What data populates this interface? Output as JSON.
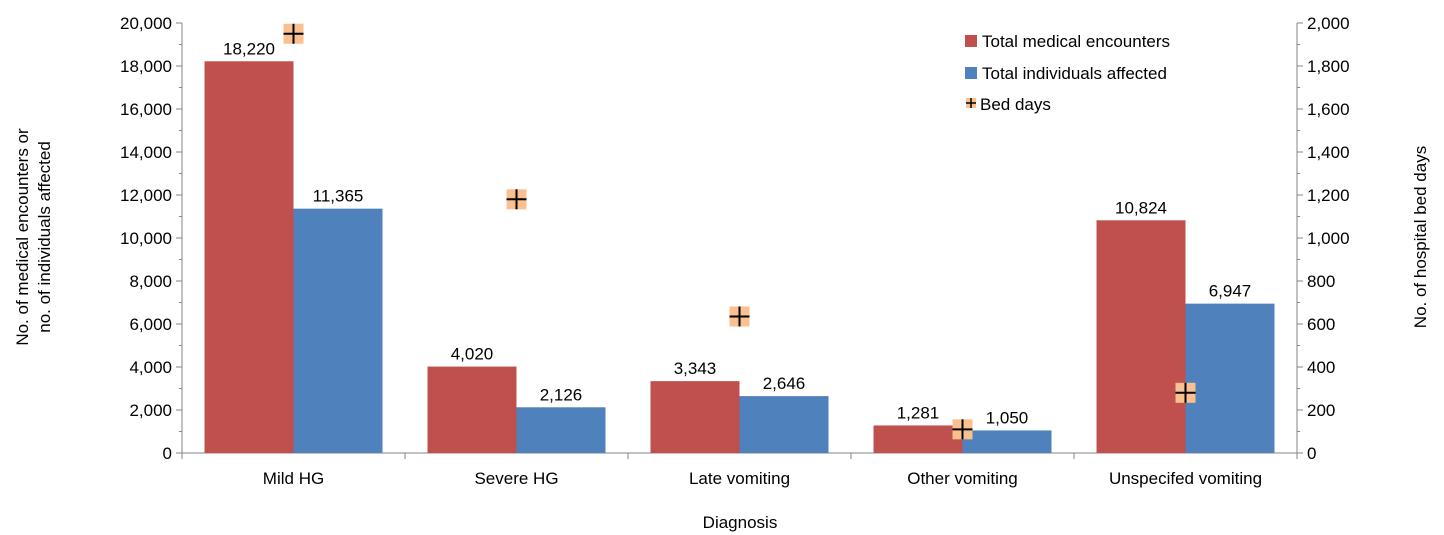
{
  "chart_data": {
    "type": "bar",
    "title": "",
    "xlabel": "Diagnosis",
    "ylabel_lines": [
      "No. of medical encounters or",
      "no. of individuals affected"
    ],
    "y2label": "No. of hospital bed days",
    "ylim": [
      0,
      20000
    ],
    "y_ticks": [
      "0",
      "2,000",
      "4,000",
      "6,000",
      "8,000",
      "10,000",
      "12,000",
      "14,000",
      "16,000",
      "18,000",
      "20,000"
    ],
    "y2lim": [
      0,
      2000
    ],
    "y2_ticks": [
      "0",
      "200",
      "400",
      "600",
      "800",
      "1,000",
      "1,200",
      "1,400",
      "1,600",
      "1,800",
      "2,000"
    ],
    "categories": [
      "Mild HG",
      "Severe HG",
      "Late vomiting",
      "Other vomiting",
      "Unspecifed vomiting"
    ],
    "series": [
      {
        "name": "Total medical encounters",
        "axis": "left",
        "color": "#C0504D",
        "values": [
          18220,
          4020,
          3343,
          1281,
          10824
        ],
        "labels": [
          "18,220",
          "4,020",
          "3,343",
          "1,281",
          "10,824"
        ]
      },
      {
        "name": "Total individuals affected",
        "axis": "left",
        "color": "#4F81BD",
        "values": [
          11365,
          2126,
          2646,
          1050,
          6947
        ],
        "labels": [
          "11,365",
          "2,126",
          "2,646",
          "1,050",
          "6,947"
        ]
      },
      {
        "name": "Bed days",
        "axis": "right",
        "marker": "plus",
        "color": "#FAC090",
        "values": [
          1950,
          1180,
          635,
          110,
          280
        ]
      }
    ],
    "legend_position": "top-right",
    "grid": false
  }
}
